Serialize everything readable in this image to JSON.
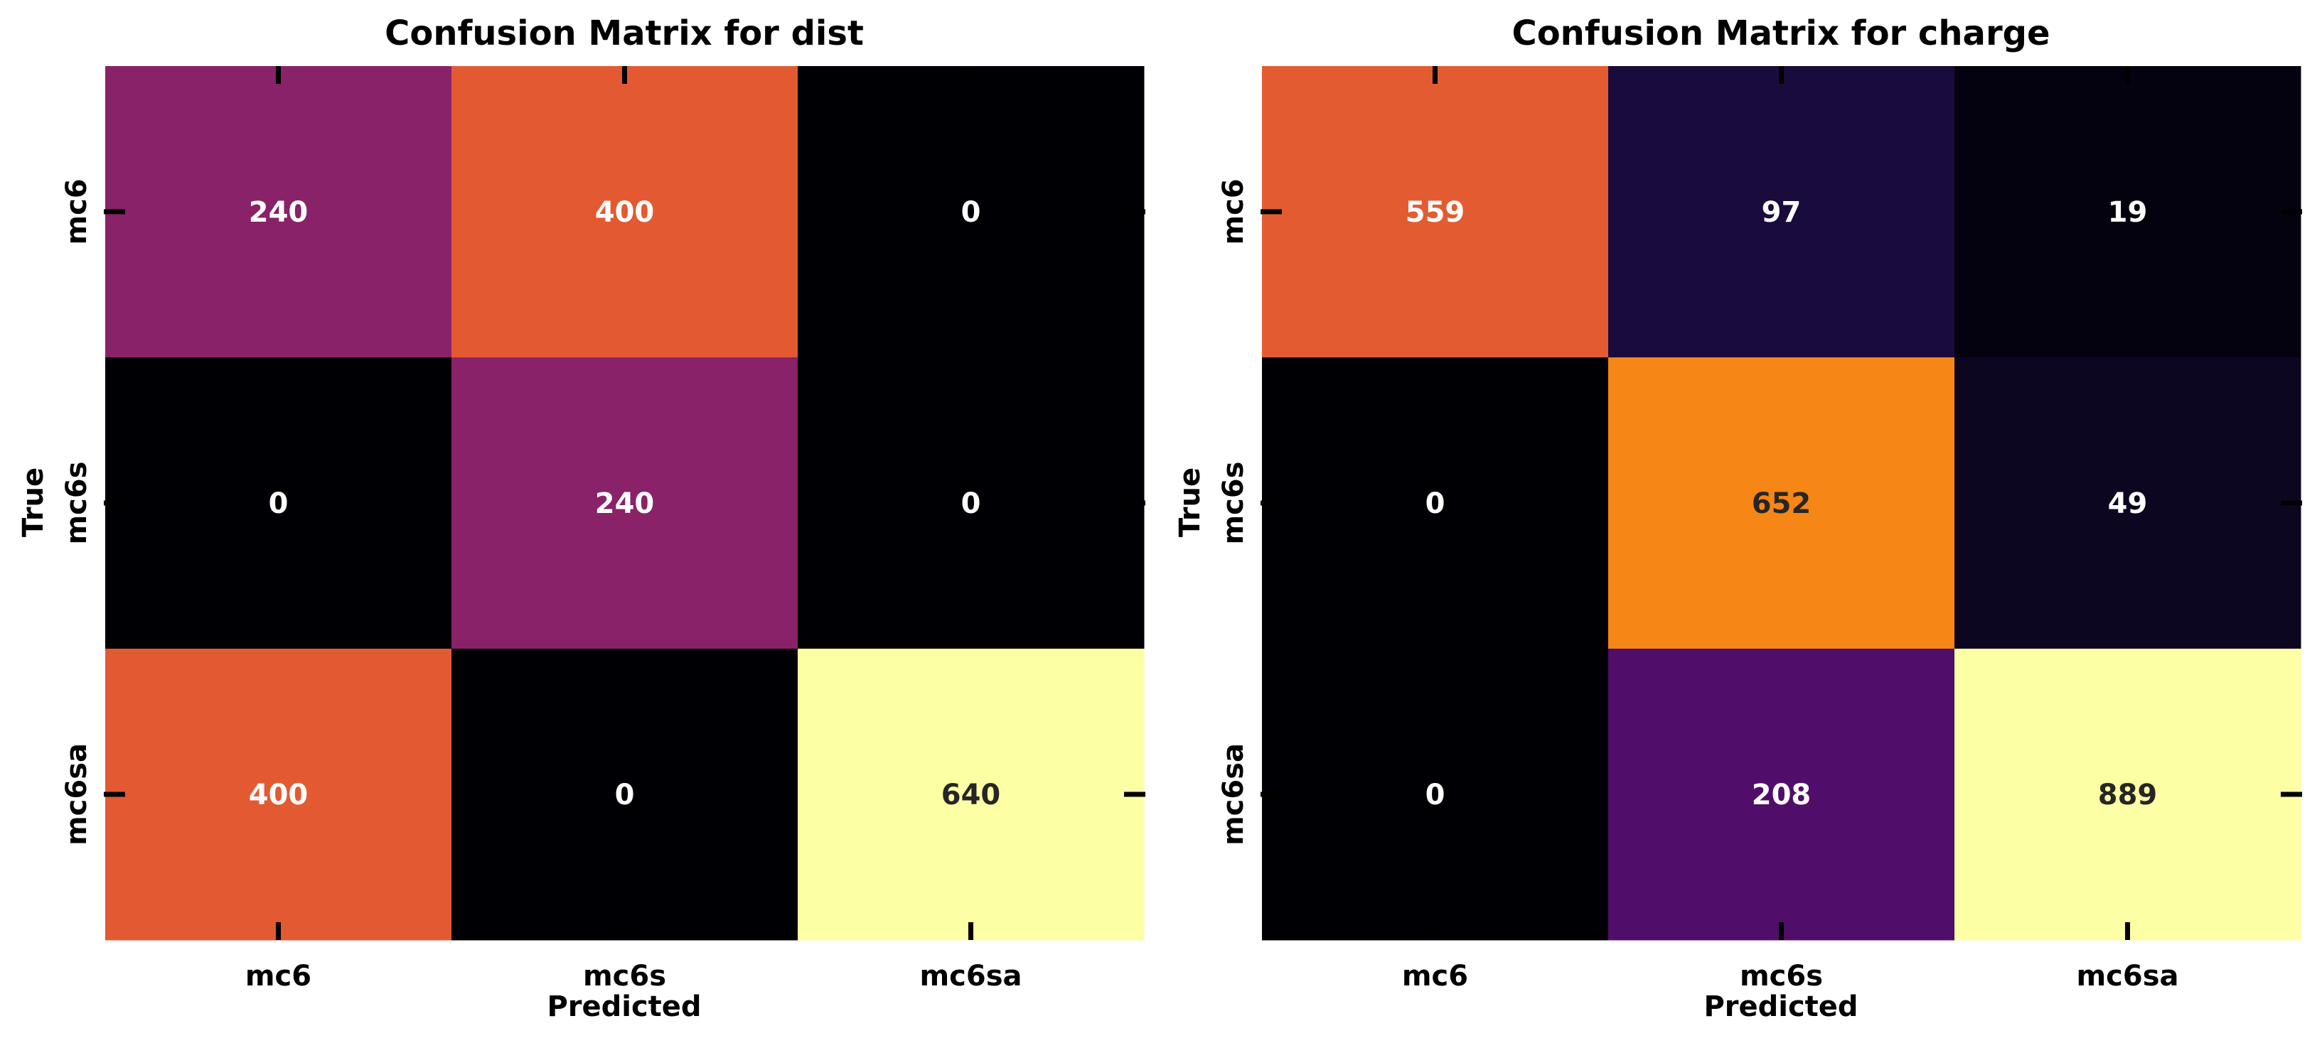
{
  "chart_data": [
    {
      "type": "heatmap",
      "title": "Confusion Matrix for dist",
      "xlabel": "Predicted",
      "ylabel": "True",
      "x_categories": [
        "mc6",
        "mc6s",
        "mc6sa"
      ],
      "y_categories": [
        "mc6",
        "mc6s",
        "mc6sa"
      ],
      "values": [
        [
          240,
          400,
          0
        ],
        [
          0,
          240,
          0
        ],
        [
          400,
          0,
          640
        ]
      ],
      "colormap": "inferno",
      "vmin": 0,
      "vmax": 640,
      "colorbar": false
    },
    {
      "type": "heatmap",
      "title": "Confusion Matrix for charge",
      "xlabel": "Predicted",
      "ylabel": "True",
      "x_categories": [
        "mc6",
        "mc6s",
        "mc6sa"
      ],
      "y_categories": [
        "mc6",
        "mc6s",
        "mc6sa"
      ],
      "values": [
        [
          559,
          97,
          19
        ],
        [
          0,
          652,
          49
        ],
        [
          0,
          208,
          889
        ]
      ],
      "colormap": "inferno",
      "vmin": 0,
      "vmax": 889,
      "colorbar": false
    }
  ],
  "colors": {
    "background": "#ffffff",
    "text": "#000000",
    "annotation_light": "#ffffff",
    "annotation_dark": "#262626"
  }
}
